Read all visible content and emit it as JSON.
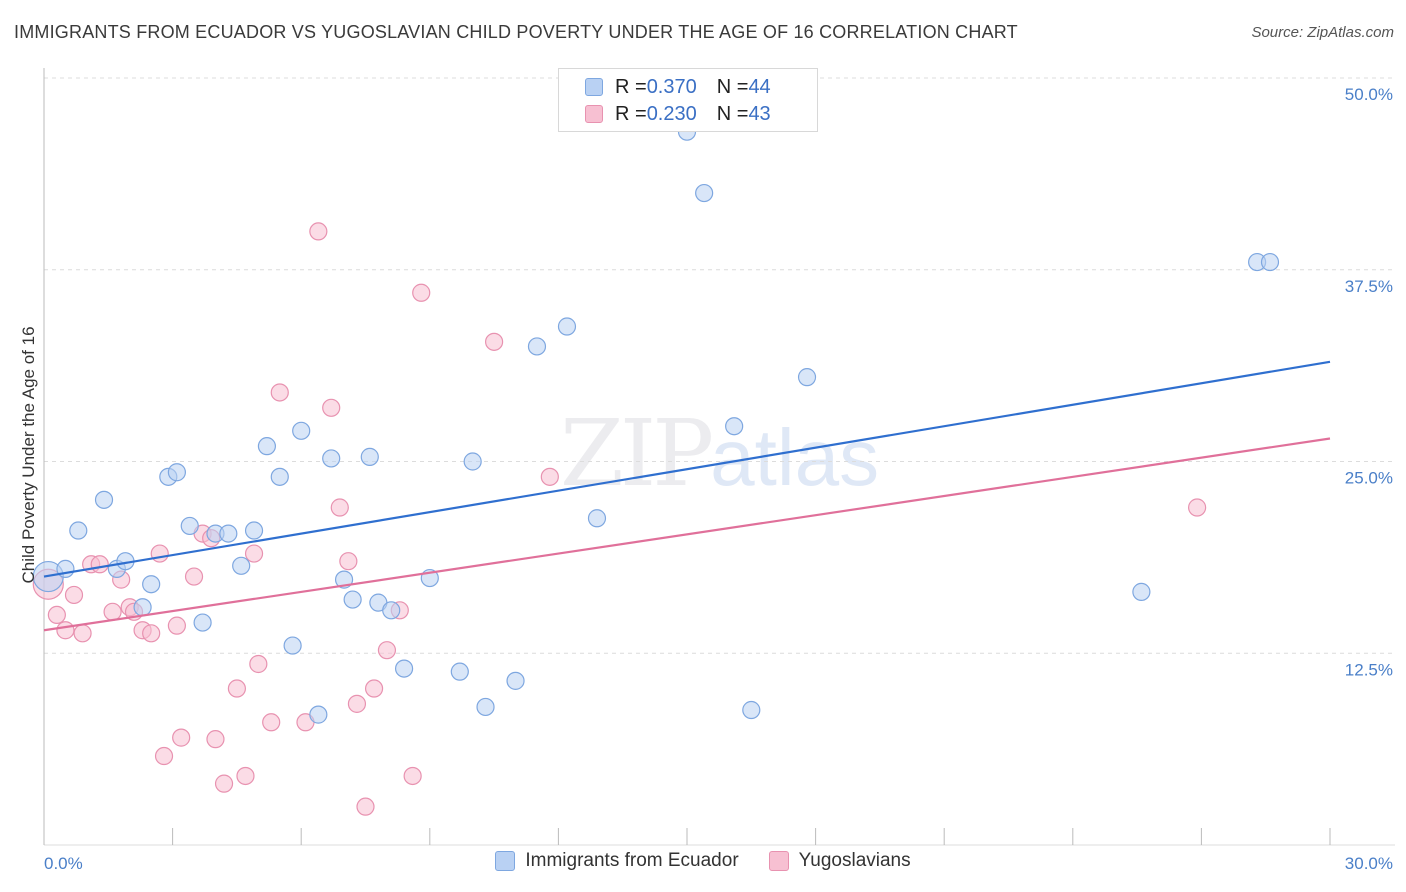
{
  "header": {
    "title": "IMMIGRANTS FROM ECUADOR VS YUGOSLAVIAN CHILD POVERTY UNDER THE AGE OF 16 CORRELATION CHART",
    "source": "Source: ZipAtlas.com"
  },
  "watermark": {
    "zip": "ZIP",
    "atlas": "atlas"
  },
  "legend_top": {
    "rows": [
      {
        "r_label": "R = ",
        "r_value": "0.370",
        "n_label": "N = ",
        "n_value": "44"
      },
      {
        "r_label": "R = ",
        "r_value": "0.230",
        "n_label": "N = ",
        "n_value": "43"
      }
    ]
  },
  "bottom_legend": {
    "items": [
      {
        "label": "Immigrants from Ecuador"
      },
      {
        "label": "Yugoslavians"
      }
    ]
  },
  "colors": {
    "blue_fill": "#b9d1f3",
    "blue_stroke": "#7ea7e0",
    "blue_line": "#2f6fcf",
    "pink_fill": "#f7c0d2",
    "pink_stroke": "#e892b0",
    "pink_line": "#e0709a",
    "tick_text": "#4a7fc8"
  },
  "chart_data": {
    "type": "scatter",
    "title": "IMMIGRANTS FROM ECUADOR VS YUGOSLAVIAN CHILD POVERTY UNDER THE AGE OF 16 CORRELATION CHART",
    "xlabel": "",
    "ylabel": "Child Poverty Under the Age of 16",
    "xlim": [
      0,
      30
    ],
    "ylim": [
      0,
      50
    ],
    "x_tick_labels": [
      "0.0%",
      "30.0%"
    ],
    "y_ticks": [
      12.5,
      25.0,
      37.5,
      50.0
    ],
    "y_tick_labels": [
      "12.5%",
      "25.0%",
      "37.5%",
      "50.0%"
    ],
    "grid": true,
    "legend_position": "top-center",
    "series": [
      {
        "name": "Immigrants from Ecuador",
        "color": "#7ea7e0",
        "trend": {
          "x": [
            0,
            30
          ],
          "y": [
            17.5,
            31.5
          ]
        },
        "points": [
          [
            0.1,
            17.5
          ],
          [
            0.5,
            18.0
          ],
          [
            0.8,
            20.5
          ],
          [
            1.4,
            22.5
          ],
          [
            1.7,
            18.0
          ],
          [
            1.9,
            18.5
          ],
          [
            2.3,
            15.5
          ],
          [
            2.5,
            17.0
          ],
          [
            2.9,
            24.0
          ],
          [
            3.1,
            24.3
          ],
          [
            3.4,
            20.8
          ],
          [
            3.7,
            14.5
          ],
          [
            4.0,
            20.3
          ],
          [
            4.3,
            20.3
          ],
          [
            4.6,
            18.2
          ],
          [
            4.9,
            20.5
          ],
          [
            5.2,
            26.0
          ],
          [
            5.5,
            24.0
          ],
          [
            5.8,
            13.0
          ],
          [
            6.0,
            27.0
          ],
          [
            6.4,
            8.5
          ],
          [
            6.7,
            25.2
          ],
          [
            7.0,
            17.3
          ],
          [
            7.2,
            16.0
          ],
          [
            7.6,
            25.3
          ],
          [
            7.8,
            15.8
          ],
          [
            8.1,
            15.3
          ],
          [
            8.4,
            11.5
          ],
          [
            9.0,
            17.4
          ],
          [
            9.7,
            11.3
          ],
          [
            10.0,
            25.0
          ],
          [
            10.3,
            9.0
          ],
          [
            11.0,
            10.7
          ],
          [
            11.5,
            32.5
          ],
          [
            12.2,
            33.8
          ],
          [
            12.9,
            21.3
          ],
          [
            15.0,
            46.5
          ],
          [
            15.4,
            42.5
          ],
          [
            16.1,
            27.3
          ],
          [
            16.5,
            8.8
          ],
          [
            17.8,
            30.5
          ],
          [
            25.6,
            16.5
          ],
          [
            28.3,
            38.0
          ],
          [
            28.6,
            38.0
          ]
        ]
      },
      {
        "name": "Yugoslavians",
        "color": "#e892b0",
        "trend": {
          "x": [
            0,
            30
          ],
          "y": [
            14.0,
            26.5
          ]
        },
        "points": [
          [
            0.1,
            17.0
          ],
          [
            0.3,
            15.0
          ],
          [
            0.5,
            14.0
          ],
          [
            0.7,
            16.3
          ],
          [
            0.9,
            13.8
          ],
          [
            1.1,
            18.3
          ],
          [
            1.3,
            18.3
          ],
          [
            1.6,
            15.2
          ],
          [
            1.8,
            17.3
          ],
          [
            2.0,
            15.5
          ],
          [
            2.1,
            15.2
          ],
          [
            2.3,
            14.0
          ],
          [
            2.5,
            13.8
          ],
          [
            2.7,
            19.0
          ],
          [
            2.8,
            5.8
          ],
          [
            3.1,
            14.3
          ],
          [
            3.2,
            7.0
          ],
          [
            3.5,
            17.5
          ],
          [
            3.7,
            20.3
          ],
          [
            3.9,
            20.0
          ],
          [
            4.0,
            6.9
          ],
          [
            4.2,
            4.0
          ],
          [
            4.5,
            10.2
          ],
          [
            4.7,
            4.5
          ],
          [
            4.9,
            19.0
          ],
          [
            5.0,
            11.8
          ],
          [
            5.3,
            8.0
          ],
          [
            5.5,
            29.5
          ],
          [
            6.1,
            8.0
          ],
          [
            6.4,
            40.0
          ],
          [
            6.7,
            28.5
          ],
          [
            6.9,
            22.0
          ],
          [
            7.1,
            18.5
          ],
          [
            7.3,
            9.2
          ],
          [
            7.5,
            2.5
          ],
          [
            7.7,
            10.2
          ],
          [
            8.0,
            12.7
          ],
          [
            8.3,
            15.3
          ],
          [
            8.6,
            4.5
          ],
          [
            8.8,
            36.0
          ],
          [
            10.5,
            32.8
          ],
          [
            11.8,
            24.0
          ],
          [
            26.9,
            22.0
          ]
        ]
      }
    ]
  }
}
